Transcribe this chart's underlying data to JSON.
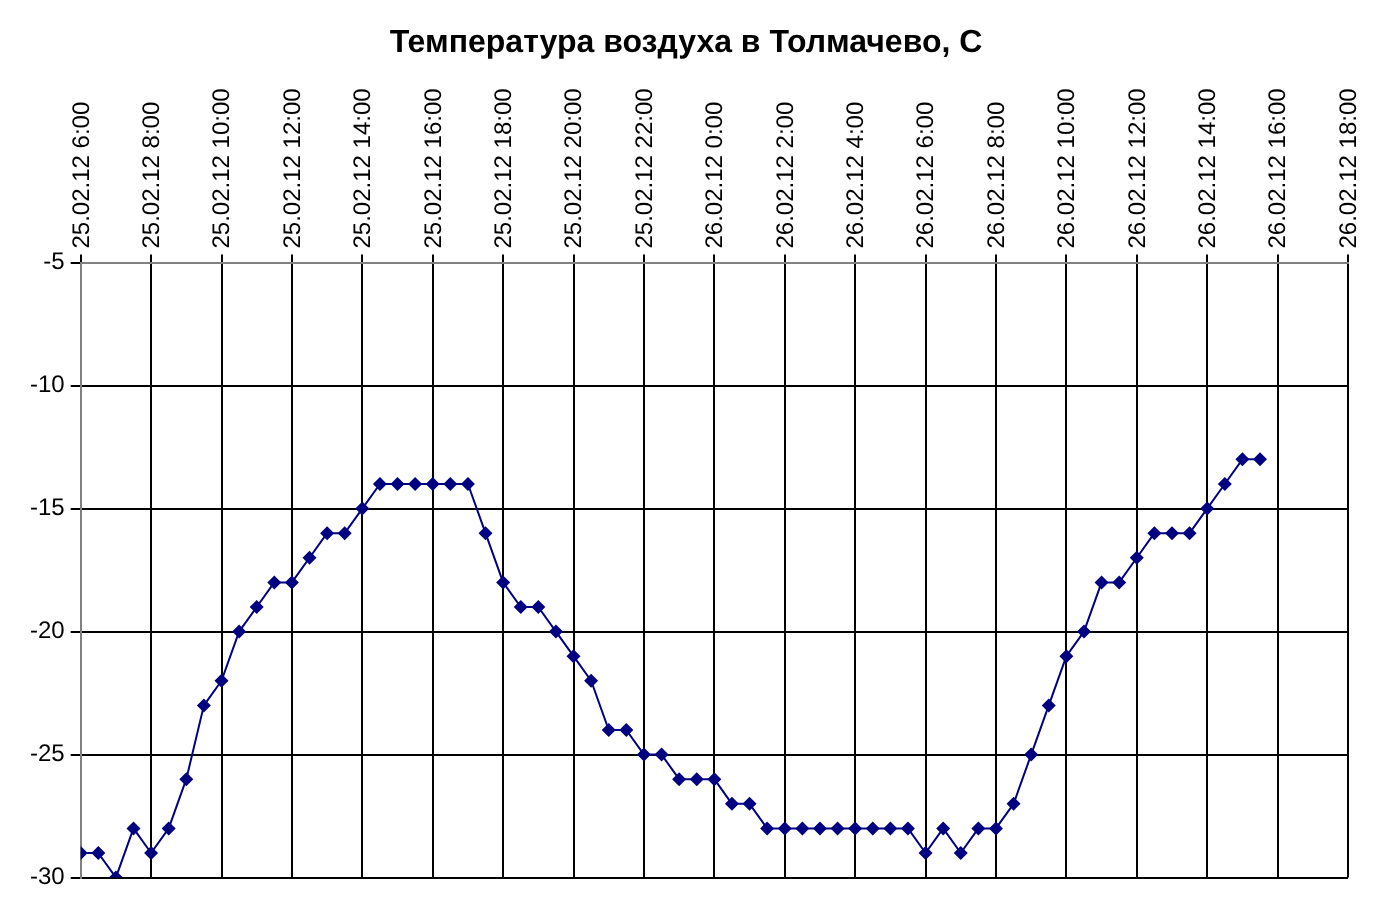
{
  "chart_data": {
    "type": "line",
    "title": "Температура воздуха в Толмачево, С",
    "x": [
      "--02-25T06:00",
      "--02-25T06:30",
      "--02-25T07:00",
      "--02-25T07:30",
      "--02-25T08:00",
      "--02-25T08:30",
      "--02-25T09:00",
      "--02-25T09:30",
      "--02-25T10:00",
      "--02-25T10:30",
      "--02-25T11:00",
      "--02-25T11:30",
      "--02-25T12:00",
      "--02-25T12:30",
      "--02-25T13:00",
      "--02-25T13:30",
      "--02-25T14:00",
      "--02-25T14:30",
      "--02-25T15:00",
      "--02-25T15:30",
      "--02-25T16:00",
      "--02-25T16:30",
      "--02-25T17:00",
      "--02-25T17:30",
      "--02-25T18:00",
      "--02-25T18:30",
      "--02-25T19:00",
      "--02-25T19:30",
      "--02-25T20:00",
      "--02-25T20:30",
      "--02-25T21:00",
      "--02-25T21:30",
      "--02-25T22:00",
      "--02-25T22:30",
      "--02-25T23:00",
      "--02-25T23:30",
      "--02-26T00:00",
      "--02-26T00:30",
      "--02-26T01:00",
      "--02-26T01:30",
      "--02-26T02:00",
      "--02-26T02:30",
      "--02-26T03:00",
      "--02-26T03:30",
      "--02-26T04:00",
      "--02-26T04:30",
      "--02-26T05:00",
      "--02-26T05:30",
      "--02-26T06:00",
      "--02-26T06:30",
      "--02-26T07:00",
      "--02-26T07:30",
      "--02-26T08:00",
      "--02-26T08:30",
      "--02-26T09:00",
      "--02-26T09:30",
      "--02-26T10:00",
      "--02-26T10:30",
      "--02-26T11:00",
      "--02-26T11:30",
      "--02-26T12:00",
      "--02-26T12:30",
      "--02-26T13:00",
      "--02-26T13:30",
      "--02-26T14:00",
      "--02-26T14:30",
      "--02-26T15:00",
      "--02-26T15:30"
    ],
    "series": [
      {
        "color": "#000080",
        "values": [
          -29,
          -29,
          -30,
          -28,
          -29,
          -28,
          -26,
          -23,
          -22,
          -20,
          -19,
          -18,
          -18,
          -17,
          -16,
          -16,
          -15,
          -14,
          -14,
          -14,
          -14,
          -14,
          -14,
          -16,
          -18,
          -19,
          -19,
          -20,
          -21,
          -22,
          -24,
          -24,
          -25,
          -25,
          -26,
          -26,
          -26,
          -27,
          -27,
          -28,
          -28,
          -28,
          -28,
          -28,
          -28,
          -28,
          -28,
          -28,
          -29,
          -28,
          -29,
          -28,
          -28,
          -27,
          -25,
          -23,
          -21,
          -20,
          -18,
          -18,
          -17,
          -16,
          -16,
          -16,
          -15,
          -14,
          -13,
          -13
        ]
      }
    ],
    "xlim": [
      "--02-25T06:00",
      "--02-26T18:00"
    ],
    "xticks": [
      {
        "value": "--02-25T06:00",
        "label": "25.02.12 6:00"
      },
      {
        "value": "--02-25T08:00",
        "label": "25.02.12 8:00"
      },
      {
        "value": "--02-25T10:00",
        "label": "25.02.12 10:00"
      },
      {
        "value": "--02-25T12:00",
        "label": "25.02.12 12:00"
      },
      {
        "value": "--02-25T14:00",
        "label": "25.02.12 14:00"
      },
      {
        "value": "--02-25T16:00",
        "label": "25.02.12 16:00"
      },
      {
        "value": "--02-25T18:00",
        "label": "25.02.12 18:00"
      },
      {
        "value": "--02-25T20:00",
        "label": "25.02.12 20:00"
      },
      {
        "value": "--02-25T22:00",
        "label": "25.02.12 22:00"
      },
      {
        "value": "--02-26T00:00",
        "label": "26.02.12 0:00"
      },
      {
        "value": "--02-26T02:00",
        "label": "26.02.12 2:00"
      },
      {
        "value": "--02-26T04:00",
        "label": "26.02.12 4:00"
      },
      {
        "value": "--02-26T06:00",
        "label": "26.02.12 6:00"
      },
      {
        "value": "--02-26T08:00",
        "label": "26.02.12 8:00"
      },
      {
        "value": "--02-26T10:00",
        "label": "26.02.12 10:00"
      },
      {
        "value": "--02-26T12:00",
        "label": "26.02.12 12:00"
      },
      {
        "value": "--02-26T14:00",
        "label": "26.02.12 14:00"
      },
      {
        "value": "--02-26T16:00",
        "label": "26.02.12 16:00"
      },
      {
        "value": "--02-26T18:00",
        "label": "26.02.12 18:00"
      }
    ],
    "ylim": [
      -30,
      -5
    ],
    "yticks": [
      -30,
      -25,
      -20,
      -15,
      -10,
      -5
    ],
    "grid": true,
    "legend": false,
    "marker": "diamond",
    "line_style": "solid"
  }
}
